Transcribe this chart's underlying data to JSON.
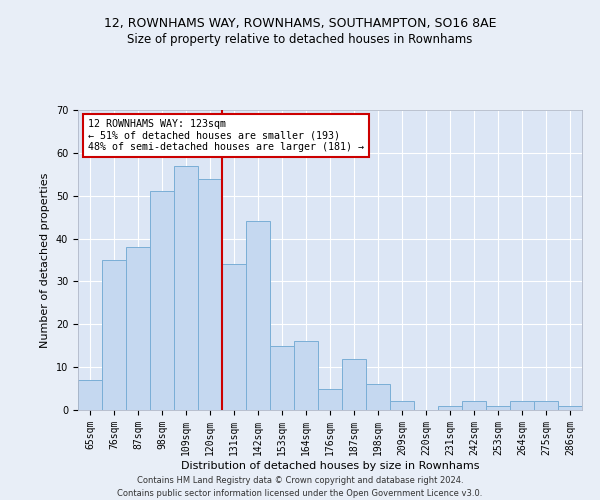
{
  "title1": "12, ROWNHAMS WAY, ROWNHAMS, SOUTHAMPTON, SO16 8AE",
  "title2": "Size of property relative to detached houses in Rownhams",
  "xlabel": "Distribution of detached houses by size in Rownhams",
  "ylabel": "Number of detached properties",
  "categories": [
    "65sqm",
    "76sqm",
    "87sqm",
    "98sqm",
    "109sqm",
    "120sqm",
    "131sqm",
    "142sqm",
    "153sqm",
    "164sqm",
    "176sqm",
    "187sqm",
    "198sqm",
    "209sqm",
    "220sqm",
    "231sqm",
    "242sqm",
    "253sqm",
    "264sqm",
    "275sqm",
    "286sqm"
  ],
  "values": [
    7,
    35,
    38,
    51,
    57,
    54,
    34,
    44,
    15,
    16,
    5,
    12,
    6,
    2,
    0,
    1,
    2,
    1,
    2,
    2,
    1
  ],
  "bar_color": "#c5d8f0",
  "bar_edge_color": "#7aaed6",
  "vline_x_index": 6,
  "vline_color": "#cc0000",
  "annotation_text": "12 ROWNHAMS WAY: 123sqm\n← 51% of detached houses are smaller (193)\n48% of semi-detached houses are larger (181) →",
  "annotation_box_color": "#ffffff",
  "annotation_box_edge": "#cc0000",
  "ylim": [
    0,
    70
  ],
  "yticks": [
    0,
    10,
    20,
    30,
    40,
    50,
    60,
    70
  ],
  "footer": "Contains HM Land Registry data © Crown copyright and database right 2024.\nContains public sector information licensed under the Open Government Licence v3.0.",
  "bg_color": "#e8eef7",
  "plot_bg_color": "#dce6f5",
  "title1_fontsize": 9,
  "title2_fontsize": 8.5,
  "xlabel_fontsize": 8,
  "ylabel_fontsize": 8,
  "tick_fontsize": 7,
  "annotation_fontsize": 7.2,
  "footer_fontsize": 6
}
